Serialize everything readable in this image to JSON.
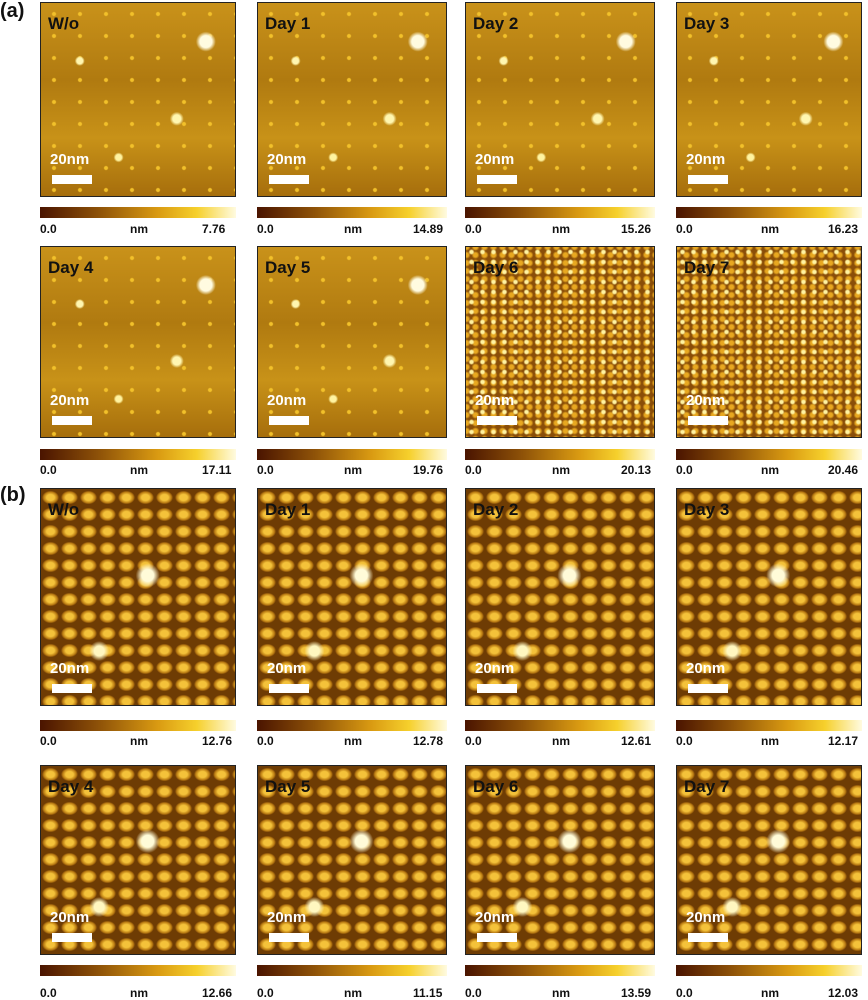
{
  "panels": [
    {
      "label": "(a)",
      "images": [
        {
          "title": "W/o",
          "scale": "20nm",
          "min": "0.0",
          "unit": "nm",
          "max": "7.76"
        },
        {
          "title": "Day 1",
          "scale": "20nm",
          "min": "0.0",
          "unit": "nm",
          "max": "14.89"
        },
        {
          "title": "Day 2",
          "scale": "20nm",
          "min": "0.0",
          "unit": "nm",
          "max": "15.26"
        },
        {
          "title": "Day 3",
          "scale": "20nm",
          "min": "0.0",
          "unit": "nm",
          "max": "16.23"
        },
        {
          "title": "Day 4",
          "scale": "20nm",
          "min": "0.0",
          "unit": "nm",
          "max": "17.11"
        },
        {
          "title": "Day 5",
          "scale": "20nm",
          "min": "0.0",
          "unit": "nm",
          "max": "19.76"
        },
        {
          "title": "Day 6",
          "scale": "20nm",
          "min": "0.0",
          "unit": "nm",
          "max": "20.13"
        },
        {
          "title": "Day 7",
          "scale": "20nm",
          "min": "0.0",
          "unit": "nm",
          "max": "20.46"
        }
      ]
    },
    {
      "label": "(b)",
      "images": [
        {
          "title": "W/o",
          "scale": "20nm",
          "min": "0.0",
          "unit": "nm",
          "max": "12.76"
        },
        {
          "title": "Day 1",
          "scale": "20nm",
          "min": "0.0",
          "unit": "nm",
          "max": "12.78"
        },
        {
          "title": "Day 2",
          "scale": "20nm",
          "min": "0.0",
          "unit": "nm",
          "max": "12.61"
        },
        {
          "title": "Day 3",
          "scale": "20nm",
          "min": "0.0",
          "unit": "nm",
          "max": "12.17"
        },
        {
          "title": "Day 4",
          "scale": "20nm",
          "min": "0.0",
          "unit": "nm",
          "max": "12.66"
        },
        {
          "title": "Day 5",
          "scale": "20nm",
          "min": "0.0",
          "unit": "nm",
          "max": "11.15"
        },
        {
          "title": "Day 6",
          "scale": "20nm",
          "min": "0.0",
          "unit": "nm",
          "max": "13.59"
        },
        {
          "title": "Day 7",
          "scale": "20nm",
          "min": "0.0",
          "unit": "nm",
          "max": "12.03"
        }
      ]
    }
  ]
}
